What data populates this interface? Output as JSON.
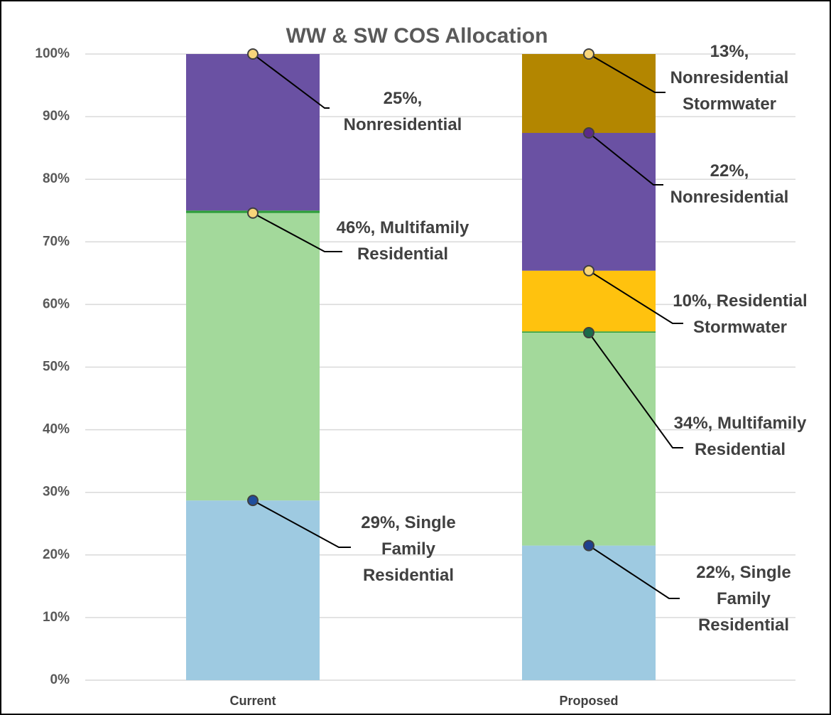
{
  "chart_data": {
    "type": "stacked_bar",
    "title": "WW & SW COS Allocation",
    "categories": [
      "Current",
      "Proposed"
    ],
    "series": [
      {
        "name": "Single Family Residential",
        "color": "#9ecae1",
        "values": [
          28.7,
          21.5
        ],
        "value_labels": [
          "29%, Single Family Residential",
          "22%, Single Family Residential"
        ]
      },
      {
        "name": "Multifamily Residential",
        "color": "#a3d99b",
        "values": [
          45.9,
          34.0
        ],
        "value_labels": [
          "46%, Multifamily Residential",
          "34%, Multifamily Residential"
        ]
      },
      {
        "color": "#2e9e3a",
        "values": [
          0.4,
          0.2
        ]
      },
      {
        "name": "Residential Stormwater",
        "color": "#ffc20e",
        "values": [
          0,
          9.7
        ],
        "value_labels": [
          null,
          "10%, Residential Stormwater"
        ]
      },
      {
        "name": "Nonresidential",
        "color": "#6a51a3",
        "values": [
          25.0,
          22.0
        ],
        "value_labels": [
          "25%, Nonresidential",
          "22%, Nonresidential"
        ]
      },
      {
        "name": "Nonresidential Stormwater",
        "color": "#b38600",
        "values": [
          0,
          12.6
        ],
        "value_labels": [
          null,
          "13%, Nonresidential Stormwater"
        ]
      }
    ],
    "ylim": [
      0,
      100
    ],
    "yticks": [
      {
        "value": 0,
        "label": "0%"
      },
      {
        "value": 10,
        "label": "10%"
      },
      {
        "value": 20,
        "label": "20%"
      },
      {
        "value": 30,
        "label": "30%"
      },
      {
        "value": 40,
        "label": "40%"
      },
      {
        "value": 50,
        "label": "50%"
      },
      {
        "value": 60,
        "label": "60%"
      },
      {
        "value": 70,
        "label": "70%"
      },
      {
        "value": 80,
        "label": "80%"
      },
      {
        "value": 90,
        "label": "90%"
      },
      {
        "value": 100,
        "label": "100%"
      }
    ],
    "grid": true
  }
}
